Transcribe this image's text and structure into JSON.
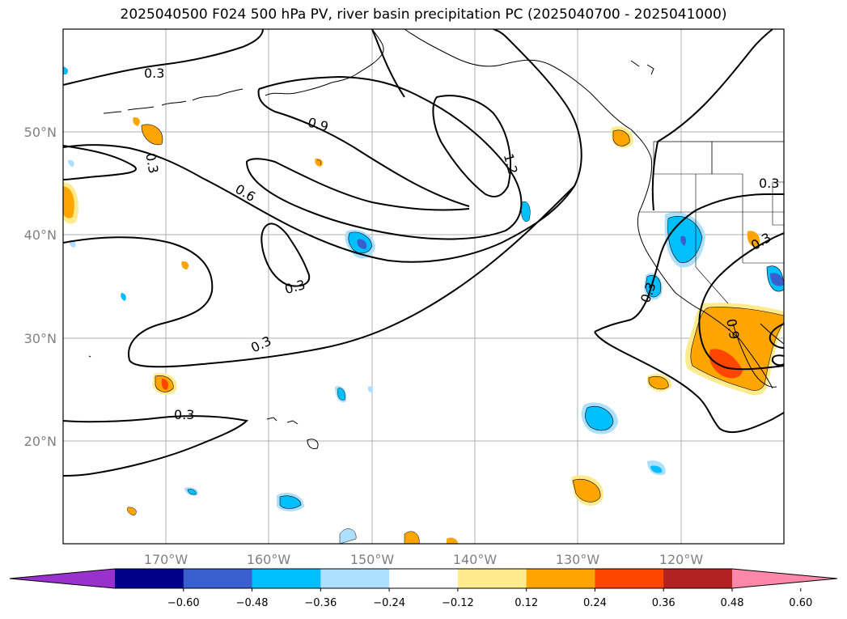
{
  "title": "2025040500 F024 500 hPa PV, river basin precipitation PC (2025040700 - 2025041000)",
  "map": {
    "latitude_labels": [
      "50°N",
      "40°N",
      "30°N",
      "20°N"
    ],
    "longitude_labels": [
      "170°W",
      "160°W",
      "150°W",
      "140°W",
      "130°W",
      "120°W"
    ],
    "pv_contour_labels": [
      "0.3",
      "0.3",
      "0.9",
      "1.2",
      "0.6",
      "0.3",
      "0.3",
      "0.3",
      "0.3",
      "0.3",
      "0.9",
      "0.3"
    ],
    "grid": true
  },
  "colorbar": {
    "extend": "both",
    "tick_labels": [
      "−0.60",
      "−0.48",
      "−0.36",
      "−0.24",
      "−0.12",
      "0.12",
      "0.24",
      "0.36",
      "0.48",
      "0.60"
    ],
    "colors": [
      "#9932CC",
      "#00008B",
      "#3A5FCD",
      "#00BFFF",
      "#ADE0FF",
      "#FFFFFF",
      "#FFEA8C",
      "#FFA500",
      "#FF4500",
      "#B22222",
      "#FF88AA"
    ]
  }
}
